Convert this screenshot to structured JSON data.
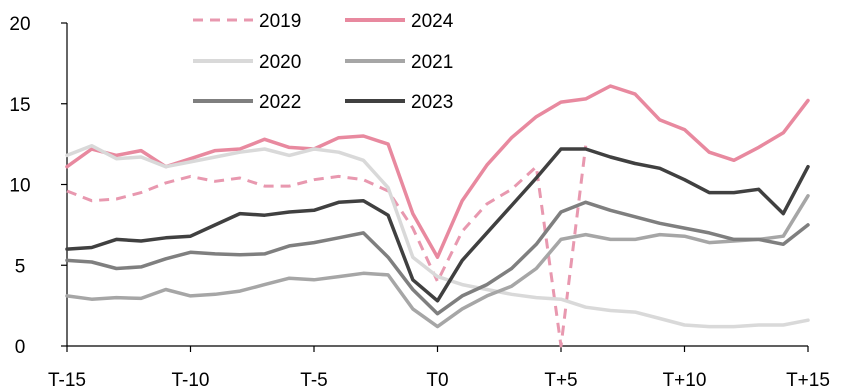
{
  "chart_data": {
    "type": "line",
    "title": "",
    "xlabel": "",
    "ylabel": "",
    "x_ticks": [
      "T-15",
      "T-10",
      "T-5",
      "T0",
      "T+5",
      "T+10",
      "T+15"
    ],
    "x_range": [
      -15,
      15
    ],
    "ylim": [
      0,
      20
    ],
    "y_ticks": [
      "0",
      "5",
      "10",
      "15",
      "20"
    ],
    "grid": false,
    "legend_position": "top",
    "series": [
      {
        "name": "2019",
        "color": "#E898AF",
        "dash": "dashed",
        "x": [
          -15,
          -14,
          -13,
          -12,
          -11,
          -10,
          -9,
          -8,
          -7,
          -6,
          -5,
          -4,
          -3,
          -2,
          -1,
          0,
          1,
          2,
          3,
          4,
          5,
          6
        ],
        "y": [
          9.6,
          9.0,
          9.1,
          9.5,
          10.1,
          10.5,
          10.2,
          10.4,
          9.9,
          9.9,
          10.3,
          10.5,
          10.3,
          9.6,
          7.3,
          4.0,
          7.1,
          8.8,
          9.7,
          11.1,
          0,
          12.4
        ]
      },
      {
        "name": "2024",
        "color": "#E8899F",
        "dash": "solid",
        "x": [
          -15,
          -14,
          -13,
          -12,
          -11,
          -10,
          -9,
          -8,
          -7,
          -6,
          -5,
          -4,
          -3,
          -2,
          -1,
          0,
          1,
          2,
          3,
          4,
          5,
          6,
          7,
          8,
          9,
          10,
          11,
          12,
          13,
          14,
          15
        ],
        "y": [
          11.1,
          12.2,
          11.8,
          12.1,
          11.1,
          11.6,
          12.1,
          12.2,
          12.8,
          12.3,
          12.2,
          12.9,
          13.0,
          12.5,
          8.2,
          5.5,
          9.0,
          11.2,
          12.9,
          14.2,
          15.1,
          15.3,
          16.1,
          15.6,
          14.0,
          13.4,
          12.0,
          11.5,
          12.3,
          13.2,
          15.2
        ]
      },
      {
        "name": "2020",
        "color": "#D9D9D9",
        "dash": "solid",
        "x": [
          -15,
          -14,
          -13,
          -12,
          -11,
          -10,
          -9,
          -8,
          -7,
          -6,
          -5,
          -4,
          -3,
          -2,
          -1,
          0,
          1,
          2,
          3,
          4,
          5,
          6,
          7,
          8,
          9,
          10,
          11,
          12,
          13,
          14,
          15
        ],
        "y": [
          11.8,
          12.4,
          11.6,
          11.7,
          11.1,
          11.4,
          11.7,
          12.0,
          12.2,
          11.8,
          12.2,
          12.0,
          11.5,
          9.8,
          5.5,
          4.3,
          3.8,
          3.5,
          3.2,
          3.0,
          2.9,
          2.4,
          2.2,
          2.1,
          1.7,
          1.3,
          1.2,
          1.2,
          1.3,
          1.3,
          1.6
        ]
      },
      {
        "name": "2021",
        "color": "#A6A6A6",
        "dash": "solid",
        "x": [
          -15,
          -14,
          -13,
          -12,
          -11,
          -10,
          -9,
          -8,
          -7,
          -6,
          -5,
          -4,
          -3,
          -2,
          -1,
          0,
          1,
          2,
          3,
          4,
          5,
          6,
          7,
          8,
          9,
          10,
          11,
          12,
          13,
          14,
          15
        ],
        "y": [
          3.1,
          2.9,
          3.0,
          2.95,
          3.5,
          3.1,
          3.2,
          3.4,
          3.8,
          4.2,
          4.1,
          4.3,
          4.5,
          4.4,
          2.3,
          1.2,
          2.3,
          3.1,
          3.7,
          4.8,
          6.6,
          6.9,
          6.6,
          6.6,
          6.9,
          6.8,
          6.4,
          6.5,
          6.6,
          6.8,
          9.3
        ]
      },
      {
        "name": "2022",
        "color": "#7F7F7F",
        "dash": "solid",
        "x": [
          -15,
          -14,
          -13,
          -12,
          -11,
          -10,
          -9,
          -8,
          -7,
          -6,
          -5,
          -4,
          -3,
          -2,
          -1,
          0,
          1,
          2,
          3,
          4,
          5,
          6,
          7,
          8,
          9,
          10,
          11,
          12,
          13,
          14,
          15
        ],
        "y": [
          5.3,
          5.2,
          4.8,
          4.9,
          5.4,
          5.8,
          5.7,
          5.65,
          5.7,
          6.2,
          6.4,
          6.7,
          7.0,
          5.5,
          3.5,
          2.0,
          3.1,
          3.8,
          4.8,
          6.3,
          8.3,
          8.9,
          8.4,
          8.0,
          7.6,
          7.3,
          7.0,
          6.6,
          6.6,
          6.3,
          7.5
        ]
      },
      {
        "name": "2023",
        "color": "#404040",
        "dash": "solid",
        "x": [
          -15,
          -14,
          -13,
          -12,
          -11,
          -10,
          -9,
          -8,
          -7,
          -6,
          -5,
          -4,
          -3,
          -2,
          -1,
          0,
          1,
          2,
          3,
          4,
          5,
          6,
          7,
          8,
          9,
          10,
          11,
          12,
          13,
          14,
          15
        ],
        "y": [
          6.0,
          6.1,
          6.6,
          6.5,
          6.7,
          6.8,
          7.5,
          8.2,
          8.1,
          8.3,
          8.4,
          8.9,
          9.0,
          8.1,
          4.1,
          2.8,
          5.3,
          7.0,
          8.7,
          10.4,
          12.2,
          12.2,
          11.7,
          11.3,
          11.0,
          10.3,
          9.5,
          9.5,
          9.7,
          8.2,
          11.1
        ]
      }
    ]
  }
}
